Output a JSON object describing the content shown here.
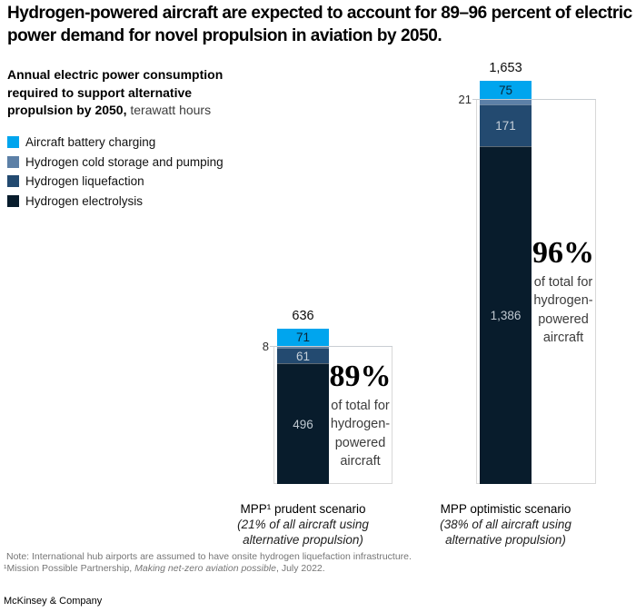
{
  "title": "Hydrogen-powered aircraft are expected to account for 89–96 percent of electric power demand for novel propulsion in aviation by 2050.",
  "subtitle_bold": "Annual electric power consumption required to support alternative propulsion by 2050,",
  "subtitle_regular": " terawatt hours",
  "chart_data": {
    "type": "bar",
    "stacked": true,
    "title": "Annual electric power consumption required to support alternative propulsion by 2050",
    "unit": "terawatt hours",
    "grid": false,
    "legend_position": "top-left",
    "categories": [
      "MPP¹ prudent scenario",
      "MPP optimistic scenario"
    ],
    "category_notes": [
      "(21% of all aircraft using alternative propulsion)",
      "(38% of all aircraft using alternative propulsion)"
    ],
    "totals": [
      636,
      1653
    ],
    "total_labels": [
      "636",
      "1,653"
    ],
    "series": [
      {
        "name": "Aircraft battery charging",
        "color": "#00a5ee",
        "values": [
          71,
          75
        ],
        "labels": [
          "71",
          "75"
        ],
        "label_color": "#0a2434",
        "label_outside": false
      },
      {
        "name": "Hydrogen cold storage and pumping",
        "color": "#5c80a7",
        "values": [
          8,
          21
        ],
        "labels": [
          "8",
          "21"
        ],
        "label_color": "#2e2e2e",
        "label_outside": true
      },
      {
        "name": "Hydrogen liquefaction",
        "color": "#234a70",
        "values": [
          61,
          171
        ],
        "labels": [
          "61",
          "171"
        ],
        "label_color": "#c6d0d9",
        "label_outside": false
      },
      {
        "name": "Hydrogen electrolysis",
        "color": "#081c2c",
        "values": [
          496,
          1386
        ],
        "labels": [
          "496",
          "1,386"
        ],
        "label_color": "#c0c9d1",
        "label_outside": false
      }
    ],
    "annotations": [
      {
        "pct": "89%",
        "caption_lines": [
          "of total for",
          "hydrogen-",
          "powered",
          "aircraft"
        ]
      },
      {
        "pct": "96%",
        "caption_lines": [
          "of total for",
          "hydrogen-",
          "powered",
          "aircraft"
        ]
      }
    ]
  },
  "footnotes": {
    "note": "Note: International hub airports are assumed to have onsite hydrogen liquefaction infrastructure.",
    "source_prefix": "¹Mission Possible Partnership, ",
    "source_italic": "Making net-zero aviation possible",
    "source_suffix": ", July 2022."
  },
  "brand": "McKinsey & Company"
}
